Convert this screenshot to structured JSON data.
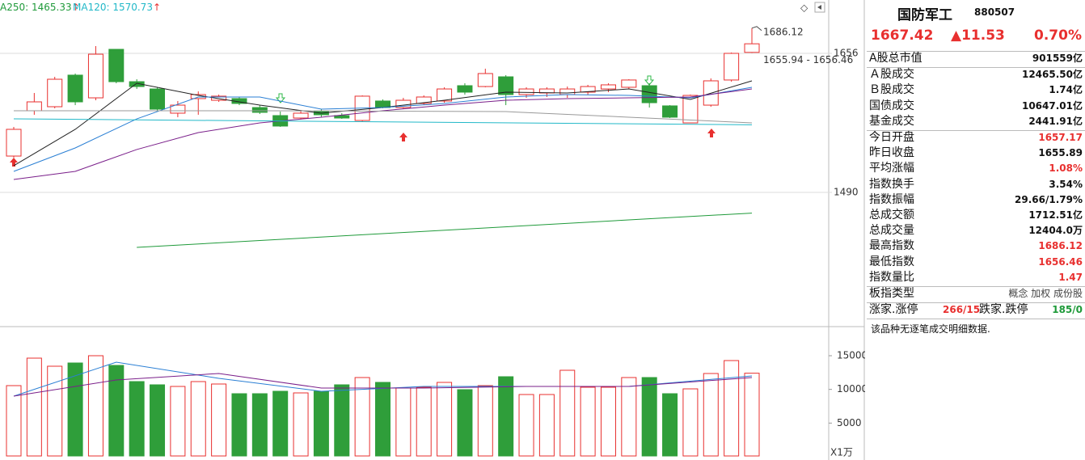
{
  "legend": [
    {
      "text": "A250: 1465.33",
      "arrow": "↑",
      "color": "#1f9a3a"
    },
    {
      "text": "MA120: 1570.73",
      "arrow": "↑",
      "color": "#21b8c8"
    }
  ],
  "chart_data": [
    {
      "type": "candlestick",
      "ylim": [
        1329.8,
        1719.7
      ],
      "yticks": [
        1656,
        1490
      ],
      "up_color": "#e8302f",
      "down_color": "#2f9e3a",
      "annotations": [
        "1686.12",
        "1655.94 - 1656.46"
      ],
      "open": [
        1533.4,
        1587.5,
        1592.3,
        1630,
        1602.9,
        1660.8,
        1622.2,
        1613.5,
        1584.6,
        1602,
        1600,
        1602,
        1591.3,
        1581.7,
        1578.8,
        1586.5,
        1581.7,
        1575.9,
        1599.1,
        1591.3,
        1596.2,
        1599.1,
        1617.4,
        1616.4,
        1628,
        1606.8,
        1608.7,
        1606.8,
        1609.7,
        1613.5,
        1615.5,
        1617.4,
        1593.3,
        1573,
        1594.2,
        1624.2,
        1657.17
      ],
      "high": [
        1568.2,
        1608.7,
        1628,
        1631.9,
        1664.7,
        1660.8,
        1625.1,
        1615.5,
        1599.1,
        1610.6,
        1606.8,
        1603.9,
        1594.2,
        1586.5,
        1587.5,
        1589.4,
        1584.6,
        1605.8,
        1601,
        1602.9,
        1605.8,
        1615.5,
        1620.3,
        1637.7,
        1630,
        1615.5,
        1615.5,
        1616.4,
        1618.4,
        1620.3,
        1625.1,
        1620.3,
        1594.2,
        1606.8,
        1626.1,
        1657,
        1686.12
      ],
      "low": [
        1531.5,
        1582.7,
        1590.4,
        1594.2,
        1600,
        1620.3,
        1613.5,
        1587.5,
        1579.8,
        1582.7,
        1598.1,
        1594.2,
        1583.6,
        1568.2,
        1576.9,
        1579.8,
        1577.8,
        1574.9,
        1590.4,
        1589.4,
        1594.2,
        1597.1,
        1606.8,
        1615.5,
        1594.2,
        1602.9,
        1603.9,
        1602.9,
        1606.8,
        1609.7,
        1613.5,
        1591.3,
        1578.8,
        1573,
        1592.3,
        1622.2,
        1656.46
      ],
      "close": [
        1565.3,
        1598.1,
        1625.1,
        1598.1,
        1655,
        1622.2,
        1616.4,
        1589.4,
        1594.2,
        1606.8,
        1604.9,
        1596.2,
        1585.6,
        1569.2,
        1584.6,
        1582.7,
        1578.8,
        1604.9,
        1591.3,
        1600,
        1603.9,
        1613.5,
        1609.7,
        1631.9,
        1606.8,
        1613.5,
        1613.5,
        1613.5,
        1616.4,
        1618.4,
        1624.2,
        1597.1,
        1579.8,
        1605.8,
        1623.2,
        1656,
        1667.42
      ],
      "lines": [
        {
          "color": "#222222",
          "x": [
            0,
            3,
            6,
            9,
            12,
            15,
            18,
            21,
            24,
            27,
            30,
            33,
            36
          ],
          "values": [
            1521.9,
            1565.3,
            1620.3,
            1605.8,
            1594.2,
            1584.6,
            1591.3,
            1600,
            1609.7,
            1608.7,
            1613.5,
            1601,
            1623.2
          ]
        },
        {
          "color": "#2a7fd4",
          "x": [
            0,
            3,
            6,
            9,
            12,
            15,
            18,
            21,
            24,
            27,
            30,
            33,
            36
          ],
          "values": [
            1515.1,
            1543.1,
            1577.8,
            1603.9,
            1603.9,
            1589.4,
            1591.3,
            1596.2,
            1603.9,
            1606.8,
            1605.8,
            1602.9,
            1615.5
          ]
        },
        {
          "color": "#7a1f8a",
          "x": [
            0,
            3,
            6,
            9,
            12,
            15,
            18,
            21,
            24,
            27,
            30,
            33,
            36
          ],
          "values": [
            1505.5,
            1515.1,
            1541.2,
            1561.4,
            1573,
            1579.8,
            1587.5,
            1594.2,
            1600,
            1602,
            1602.9,
            1603.9,
            1613.5
          ]
        },
        {
          "color": "#999999",
          "x": [
            0,
            12,
            24,
            30,
            36
          ],
          "values": [
            1587.5,
            1587.5,
            1586.5,
            1579.8,
            1573
          ]
        },
        {
          "color": "#21b8c8",
          "x": [
            0,
            36
          ],
          "values": [
            1577.8,
            1570.73
          ]
        },
        {
          "color": "#1f9a3a",
          "x": [
            6,
            36
          ],
          "values": [
            1424.4,
            1465.33
          ]
        }
      ]
    },
    {
      "type": "bar",
      "ylim": [
        0,
        19200
      ],
      "yticks": [
        15000,
        10000,
        5000
      ],
      "unit": "X1万",
      "values": [
        10560,
        14640,
        13440,
        13920,
        15000,
        13560,
        11160,
        10680,
        10440,
        11160,
        10800,
        9360,
        9360,
        9720,
        9480,
        9720,
        10680,
        11760,
        11040,
        10200,
        10320,
        11040,
        9960,
        10560,
        11880,
        9240,
        9240,
        12840,
        10320,
        10320,
        11760,
        11760,
        9360,
        10080,
        12360,
        14280,
        12404
      ],
      "lines": [
        {
          "color": "#2a7fd4",
          "x": [
            0,
            5,
            10,
            15,
            20,
            25,
            30,
            36
          ],
          "values": [
            9000,
            14040,
            11640,
            9720,
            10440,
            10440,
            10440,
            12000
          ]
        },
        {
          "color": "#7a1f8a",
          "x": [
            0,
            5,
            10,
            15,
            20,
            25,
            30,
            36
          ],
          "values": [
            9000,
            11400,
            12360,
            10200,
            10200,
            10440,
            10440,
            11760
          ]
        }
      ]
    }
  ],
  "quote_panel": {
    "name": "国防军工",
    "code": "880507",
    "price": "1667.42",
    "change": "▲11.53",
    "percent": "0.70%",
    "groups": [
      [
        {
          "label": "A股总市值",
          "value": "901559亿"
        }
      ],
      [
        {
          "label": "Ａ股成交",
          "value": "12465.50亿"
        },
        {
          "label": "Ｂ股成交",
          "value": "1.74亿"
        },
        {
          "label": "国债成交",
          "value": "10647.01亿"
        },
        {
          "label": "基金成交",
          "value": "2441.91亿"
        }
      ],
      [
        {
          "label": "今日开盘",
          "value": "1657.17",
          "color": "#e8302f"
        },
        {
          "label": "昨日收盘",
          "value": "1655.89"
        },
        {
          "label": "平均涨幅",
          "value": "1.08%",
          "color": "#e8302f"
        },
        {
          "label": "指数换手",
          "value": "3.54%"
        },
        {
          "label": "指数振幅",
          "value": "29.66/1.79%"
        },
        {
          "label": "总成交额",
          "value": "1712.51亿"
        },
        {
          "label": "总成交量",
          "value": "12404.0万"
        },
        {
          "label": "最高指数",
          "value": "1686.12",
          "color": "#e8302f"
        },
        {
          "label": "最低指数",
          "value": "1656.46",
          "color": "#e8302f"
        },
        {
          "label": "指数量比",
          "value": "1.47",
          "color": "#e8302f"
        }
      ],
      [
        {
          "label": "板指类型",
          "value": "概念 加权 成份股"
        }
      ]
    ],
    "breadth": {
      "up_label": "涨家.涨停",
      "up_value": "266/15",
      "down_label": "跌家.跌停",
      "down_value": "185/0"
    },
    "note": "该品种无逐笔成交明细数据."
  }
}
